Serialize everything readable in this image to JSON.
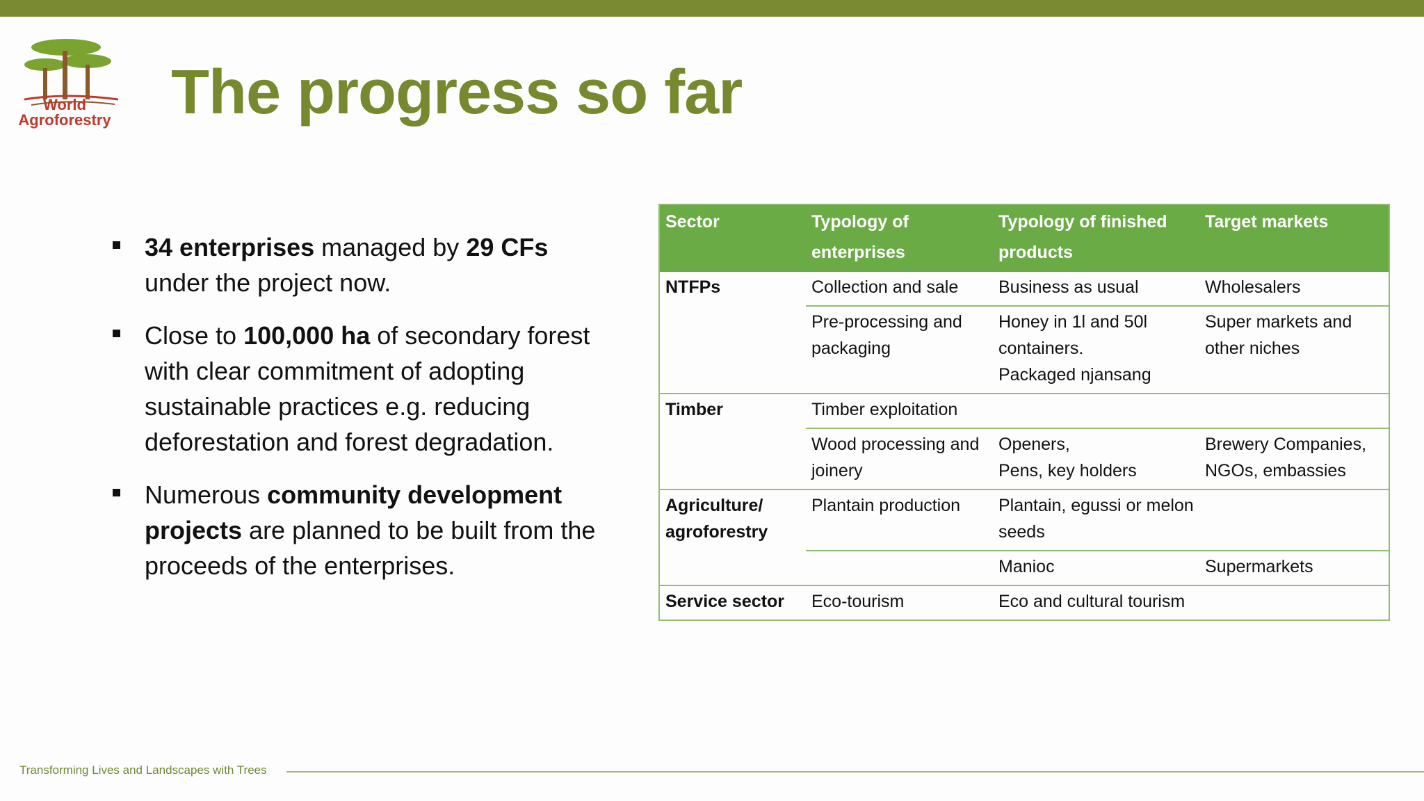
{
  "header": {
    "logo": [
      "World",
      "Agroforestry"
    ],
    "title": "The progress so far"
  },
  "bullets": [
    [
      {
        "text": "34 enterprises",
        "bold": true
      },
      {
        "text": " managed by ",
        "bold": false
      },
      {
        "text": "29 CFs",
        "bold": true
      },
      {
        "text": " under the project now.",
        "bold": false
      }
    ],
    [
      {
        "text": "Close to ",
        "bold": false
      },
      {
        "text": "100,000 ha",
        "bold": true
      },
      {
        "text": " of secondary forest with clear commitment of adopting sustainable practices e.g. reducing deforestation and forest degradation.",
        "bold": false
      }
    ],
    [
      {
        "text": "Numerous ",
        "bold": false
      },
      {
        "text": "community development projects",
        "bold": true
      },
      {
        "text": " are planned  to be built from the proceeds of the enterprises.",
        "bold": false
      }
    ]
  ],
  "table": {
    "header": [
      "Sector",
      "Typology of enterprises",
      "Typology of finished products",
      "Target markets"
    ],
    "rows": [
      [
        "NTFPs",
        "Collection and sale",
        "Business as usual",
        "Wholesalers"
      ],
      [
        null,
        "Pre-processing and packaging",
        "Honey in 1l and 50l containers.\nPackaged njansang",
        "Super markets and other niches"
      ],
      [
        "Timber",
        "Timber exploitation",
        null,
        null
      ],
      [
        null,
        "Wood processing and joinery",
        "Openers,\nPens, key holders",
        "Brewery Companies, NGOs, embassies"
      ],
      [
        "Agriculture/ agroforestry",
        "Plantain production",
        "Plantain, egussi or melon seeds",
        null
      ],
      [
        null,
        null,
        "Manioc",
        "Supermarkets"
      ],
      [
        "Service sector",
        "Eco-tourism",
        "Eco and cultural tourism",
        null
      ]
    ]
  },
  "footer": "Transforming Lives and Landscapes with Trees"
}
